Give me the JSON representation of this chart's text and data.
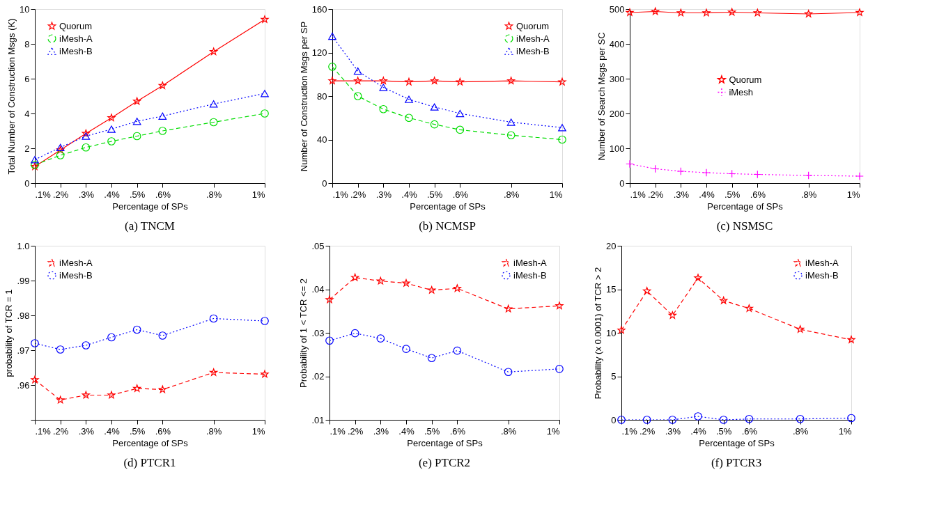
{
  "chart_data": [
    {
      "type": "line",
      "title": "(a)  TNCM",
      "xlabel": "Percentage of SPs",
      "ylabel": "Total Number of Construction Msgs (K)",
      "legend": "top left",
      "grid": false,
      "x": [
        0.1,
        0.2,
        0.3,
        0.4,
        0.5,
        0.6,
        0.8,
        1.0
      ],
      "xlim": [
        0.1,
        1.0
      ],
      "xticks": [
        {
          "value": 0.1,
          "label": ".1%"
        },
        {
          "value": 0.2,
          "label": ".2%"
        },
        {
          "value": 0.3,
          "label": ".3%"
        },
        {
          "value": 0.4,
          "label": ".4%"
        },
        {
          "value": 0.5,
          "label": ".5%"
        },
        {
          "value": 0.6,
          "label": ".6%"
        },
        {
          "value": 0.8,
          "label": ".8%"
        },
        {
          "value": 1.0,
          "label": "1%"
        }
      ],
      "ylim": [
        0,
        10
      ],
      "yticks": [
        0,
        2,
        4,
        6,
        8,
        10
      ],
      "series": [
        {
          "name": "Quorum",
          "color": "#ff0000",
          "marker": "star",
          "line_style": "solid",
          "values": [
            0.95,
            1.9,
            2.85,
            3.75,
            4.7,
            5.6,
            7.55,
            9.4
          ]
        },
        {
          "name": "iMesh-A",
          "color": "#00dd00",
          "marker": "circle",
          "line_style": "dashed",
          "values": [
            1.05,
            1.6,
            2.05,
            2.4,
            2.7,
            3.0,
            3.5,
            4.0
          ]
        },
        {
          "name": "iMesh-B",
          "color": "#0000ff",
          "marker": "triangle",
          "line_style": "dotted",
          "values": [
            1.35,
            2.05,
            2.7,
            3.1,
            3.55,
            3.85,
            4.55,
            5.15
          ]
        }
      ]
    },
    {
      "type": "line",
      "title": "(b)  NCMSP",
      "xlabel": "Percentage of SPs",
      "ylabel": "Number of Construction Msgs per SP",
      "legend": "top right",
      "grid": false,
      "x": [
        0.1,
        0.2,
        0.3,
        0.4,
        0.5,
        0.6,
        0.8,
        1.0
      ],
      "xlim": [
        0.1,
        1.0
      ],
      "xticks": [
        {
          "value": 0.1,
          "label": ".1%"
        },
        {
          "value": 0.2,
          "label": ".2%"
        },
        {
          "value": 0.3,
          "label": ".3%"
        },
        {
          "value": 0.4,
          "label": ".4%"
        },
        {
          "value": 0.5,
          "label": ".5%"
        },
        {
          "value": 0.6,
          "label": ".6%"
        },
        {
          "value": 0.8,
          "label": ".8%"
        },
        {
          "value": 1.0,
          "label": "1%"
        }
      ],
      "ylim": [
        0,
        160
      ],
      "yticks": [
        0,
        40,
        80,
        120,
        160
      ],
      "series": [
        {
          "name": "Quorum",
          "color": "#ff0000",
          "marker": "star",
          "line_style": "solid",
          "values": [
            94,
            94,
            94,
            93,
            94,
            93,
            94,
            93
          ]
        },
        {
          "name": "iMesh-A",
          "color": "#00dd00",
          "marker": "circle",
          "line_style": "dashed",
          "values": [
            107,
            80,
            68,
            60,
            54,
            49,
            44,
            40
          ]
        },
        {
          "name": "iMesh-B",
          "color": "#0000ff",
          "marker": "triangle",
          "line_style": "dotted",
          "values": [
            135,
            103,
            88,
            77,
            70,
            64,
            56,
            51
          ]
        }
      ]
    },
    {
      "type": "line",
      "title": "(c)  NSMSC",
      "xlabel": "Percentage of SPs",
      "ylabel": "Number of Search Msgs per SC",
      "legend": "center",
      "grid": false,
      "x": [
        0.1,
        0.2,
        0.3,
        0.4,
        0.5,
        0.6,
        0.8,
        1.0
      ],
      "xlim": [
        0.1,
        1.0
      ],
      "xticks": [
        {
          "value": 0.1,
          "label": ".1%"
        },
        {
          "value": 0.2,
          "label": ".2%"
        },
        {
          "value": 0.3,
          "label": ".3%"
        },
        {
          "value": 0.4,
          "label": ".4%"
        },
        {
          "value": 0.5,
          "label": ".5%"
        },
        {
          "value": 0.6,
          "label": ".6%"
        },
        {
          "value": 0.8,
          "label": ".8%"
        },
        {
          "value": 1.0,
          "label": "1%"
        }
      ],
      "ylim": [
        0,
        500
      ],
      "yticks": [
        0,
        100,
        200,
        300,
        400,
        500
      ],
      "series": [
        {
          "name": "Quorum",
          "color": "#ff0000",
          "marker": "star",
          "line_style": "solid",
          "values": [
            490,
            493,
            489,
            489,
            491,
            489,
            486,
            490
          ]
        },
        {
          "name": "iMesh",
          "color": "#ff00ff",
          "marker": "cross",
          "line_style": "dotted",
          "values": [
            55,
            41,
            34,
            30,
            27,
            25,
            22,
            20
          ]
        }
      ]
    },
    {
      "type": "line",
      "title": "(d)  PTCR1",
      "xlabel": "Percentage of SPs",
      "ylabel": "probability of TCR = 1",
      "legend": "top left",
      "grid": false,
      "x": [
        0.1,
        0.2,
        0.3,
        0.4,
        0.5,
        0.6,
        0.8,
        1.0
      ],
      "xlim": [
        0.1,
        1.0
      ],
      "xticks": [
        {
          "value": 0.1,
          "label": ".1%"
        },
        {
          "value": 0.2,
          "label": ".2%"
        },
        {
          "value": 0.3,
          "label": ".3%"
        },
        {
          "value": 0.4,
          "label": ".4%"
        },
        {
          "value": 0.5,
          "label": ".5%"
        },
        {
          "value": 0.6,
          "label": ".6%"
        },
        {
          "value": 0.8,
          "label": ".8%"
        },
        {
          "value": 1.0,
          "label": "1%"
        }
      ],
      "ylim": [
        0.95,
        1.0
      ],
      "yticks": [
        {
          "value": 0.95,
          "label": null
        },
        {
          "value": 0.96,
          "label": ".96"
        },
        {
          "value": 0.97,
          "label": ".97"
        },
        {
          "value": 0.98,
          "label": ".98"
        },
        {
          "value": 0.99,
          "label": ".99"
        },
        {
          "value": 1.0,
          "label": "1.0"
        }
      ],
      "series": [
        {
          "name": "iMesh-A",
          "color": "#ff0000",
          "marker": "star",
          "line_style": "dashed",
          "values": [
            0.9615,
            0.9557,
            0.9571,
            0.9571,
            0.959,
            0.9587,
            0.9636,
            0.9631
          ]
        },
        {
          "name": "iMesh-B",
          "color": "#0000ff",
          "marker": "circle",
          "line_style": "dotted",
          "values": [
            0.972,
            0.9702,
            0.9714,
            0.9737,
            0.9759,
            0.9742,
            0.9791,
            0.9784
          ]
        }
      ]
    },
    {
      "type": "line",
      "title": "(e)  PTCR2",
      "xlabel": "Percentage of SPs",
      "ylabel": "Probability of 1 < TCR <= 2",
      "legend": "top right",
      "grid": false,
      "x": [
        0.1,
        0.2,
        0.3,
        0.4,
        0.5,
        0.6,
        0.8,
        1.0
      ],
      "xlim": [
        0.1,
        1.0
      ],
      "xticks": [
        {
          "value": 0.1,
          "label": ".1%"
        },
        {
          "value": 0.2,
          "label": ".2%"
        },
        {
          "value": 0.3,
          "label": ".3%"
        },
        {
          "value": 0.4,
          "label": ".4%"
        },
        {
          "value": 0.5,
          "label": ".5%"
        },
        {
          "value": 0.6,
          "label": ".6%"
        },
        {
          "value": 0.8,
          "label": ".8%"
        },
        {
          "value": 1.0,
          "label": "1%"
        }
      ],
      "ylim": [
        0.01,
        0.05
      ],
      "yticks": [
        {
          "value": 0.01,
          "label": ".01"
        },
        {
          "value": 0.02,
          "label": ".02"
        },
        {
          "value": 0.03,
          "label": ".03"
        },
        {
          "value": 0.04,
          "label": ".04"
        },
        {
          "value": 0.05,
          "label": ".05"
        }
      ],
      "series": [
        {
          "name": "iMesh-A",
          "color": "#ff0000",
          "marker": "star",
          "line_style": "dashed",
          "values": [
            0.0376,
            0.0427,
            0.0419,
            0.0414,
            0.0398,
            0.0402,
            0.0355,
            0.0362
          ]
        },
        {
          "name": "iMesh-B",
          "color": "#0000ff",
          "marker": "circle",
          "line_style": "dotted",
          "values": [
            0.0282,
            0.0299,
            0.0287,
            0.0263,
            0.0242,
            0.0259,
            0.021,
            0.0217
          ]
        }
      ]
    },
    {
      "type": "line",
      "title": "(f)  PTCR3",
      "xlabel": "Percentage of SPs",
      "ylabel": "Probability (x 0.0001) of TCR > 2",
      "legend": "top right",
      "grid": false,
      "x": [
        0.1,
        0.2,
        0.3,
        0.4,
        0.5,
        0.6,
        0.8,
        1.0
      ],
      "xlim": [
        0.1,
        1.0
      ],
      "xticks": [
        {
          "value": 0.1,
          "label": ".1%"
        },
        {
          "value": 0.2,
          "label": ".2%"
        },
        {
          "value": 0.3,
          "label": ".3%"
        },
        {
          "value": 0.4,
          "label": ".4%"
        },
        {
          "value": 0.5,
          "label": ".5%"
        },
        {
          "value": 0.6,
          "label": ".6%"
        },
        {
          "value": 0.8,
          "label": ".8%"
        },
        {
          "value": 1.0,
          "label": "1%"
        }
      ],
      "ylim": [
        0,
        20
      ],
      "yticks": [
        0,
        5,
        10,
        15,
        20
      ],
      "series": [
        {
          "name": "iMesh-A",
          "color": "#ff0000",
          "marker": "star",
          "line_style": "dashed",
          "values": [
            10.3,
            14.8,
            12.0,
            16.3,
            13.7,
            12.8,
            10.4,
            9.2
          ]
        },
        {
          "name": "iMesh-B",
          "color": "#0000ff",
          "marker": "circle",
          "line_style": "dotted",
          "values": [
            0,
            0,
            0,
            0.4,
            0,
            0.1,
            0.1,
            0.2
          ]
        }
      ]
    }
  ]
}
